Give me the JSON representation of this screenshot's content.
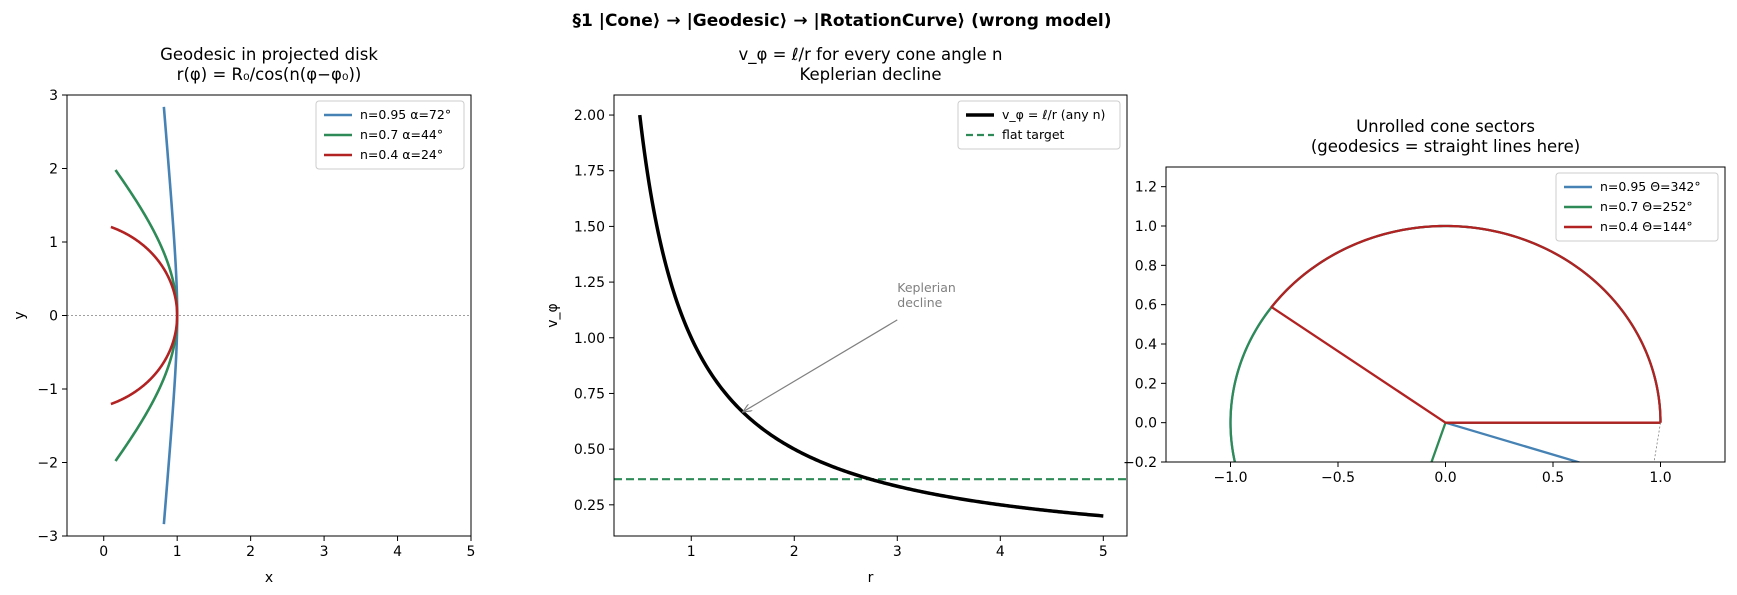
{
  "suptitle": "§1  |Cone⟩ → |Geodesic⟩ → |RotationCurve⟩   (wrong model)",
  "colors": {
    "blue": "#4682b4",
    "green": "#2e8b57",
    "red": "#b22222",
    "black": "#000000",
    "gray": "#808080"
  },
  "chart_data": [
    {
      "type": "line",
      "title": [
        "Geodesic in projected disk",
        "r(φ) = R₀/cos(n(φ−φ₀))"
      ],
      "xlabel": "x",
      "ylabel": "y",
      "xlim": [
        -0.5,
        5
      ],
      "ylim": [
        -3,
        3
      ],
      "xticks": [
        0,
        1,
        2,
        3,
        4,
        5
      ],
      "yticks": [
        -3,
        -2,
        -1,
        0,
        1,
        2,
        3
      ],
      "hline": 0,
      "legend_position": "top-right",
      "R0": 1,
      "series": [
        {
          "name": "n=0.95  α=72°",
          "n": 0.95,
          "color": "blue",
          "phi_max": 1.29
        },
        {
          "name": "n=0.7  α=44°",
          "n": 0.7,
          "color": "green",
          "phi_max": 1.49
        },
        {
          "name": "n=0.4  α=24°",
          "n": 0.4,
          "color": "red",
          "phi_max": 1.49
        }
      ]
    },
    {
      "type": "line",
      "title": [
        "v_φ = ℓ/r for every cone angle n",
        "Keplerian decline"
      ],
      "xlabel": "r",
      "ylabel": "v_φ",
      "xlim": [
        0.25,
        5.23
      ],
      "ylim": [
        0.11,
        2.09
      ],
      "xticks": [
        1,
        2,
        3,
        4,
        5
      ],
      "yticks": [
        0.25,
        0.5,
        0.75,
        1.0,
        1.25,
        1.5,
        1.75,
        2.0
      ],
      "ytick_labels": [
        "0.25",
        "0.50",
        "0.75",
        "1.00",
        "1.25",
        "1.50",
        "1.75",
        "2.00"
      ],
      "legend_position": "top-right",
      "series": [
        {
          "name": "v_φ = ℓ/r  (any n)",
          "l": 1.0,
          "r_range": [
            0.5,
            5.0
          ],
          "color": "black"
        },
        {
          "name": "flat target",
          "value": 0.365,
          "color": "green",
          "dashed": true
        }
      ],
      "annotation": {
        "text": [
          "Keplerian",
          "decline"
        ],
        "text_at": [
          3.0,
          1.17
        ],
        "arrow_to": [
          1.5,
          0.667
        ]
      }
    },
    {
      "type": "line",
      "title": [
        "Unrolled cone sectors",
        "(geodesics = straight lines here)"
      ],
      "xlabel": "",
      "ylabel": "",
      "xlim": [
        -1.3,
        1.3
      ],
      "ylim": [
        -0.2,
        1.3
      ],
      "xticks": [
        -1.0,
        -0.5,
        0.0,
        0.5,
        1.0
      ],
      "xtick_labels": [
        "−1.0",
        "−0.5",
        "0.0",
        "0.5",
        "1.0"
      ],
      "yticks": [
        -0.2,
        0.0,
        0.2,
        0.4,
        0.6,
        0.8,
        1.0,
        1.2
      ],
      "ytick_labels": [
        "−0.2",
        "0.0",
        "0.2",
        "0.4",
        "0.6",
        "0.8",
        "1.0",
        "1.2"
      ],
      "legend_position": "top-right",
      "series": [
        {
          "name": "n=0.95  Θ=342°",
          "sector_deg": 342,
          "color": "blue"
        },
        {
          "name": "n=0.7  Θ=252°",
          "sector_deg": 252,
          "color": "green"
        },
        {
          "name": "n=0.4  Θ=144°",
          "sector_deg": 144,
          "color": "red"
        }
      ],
      "reference_line": {
        "from": [
          1.0,
          0.0
        ],
        "to": [
          0.97,
          -0.2
        ]
      }
    }
  ]
}
